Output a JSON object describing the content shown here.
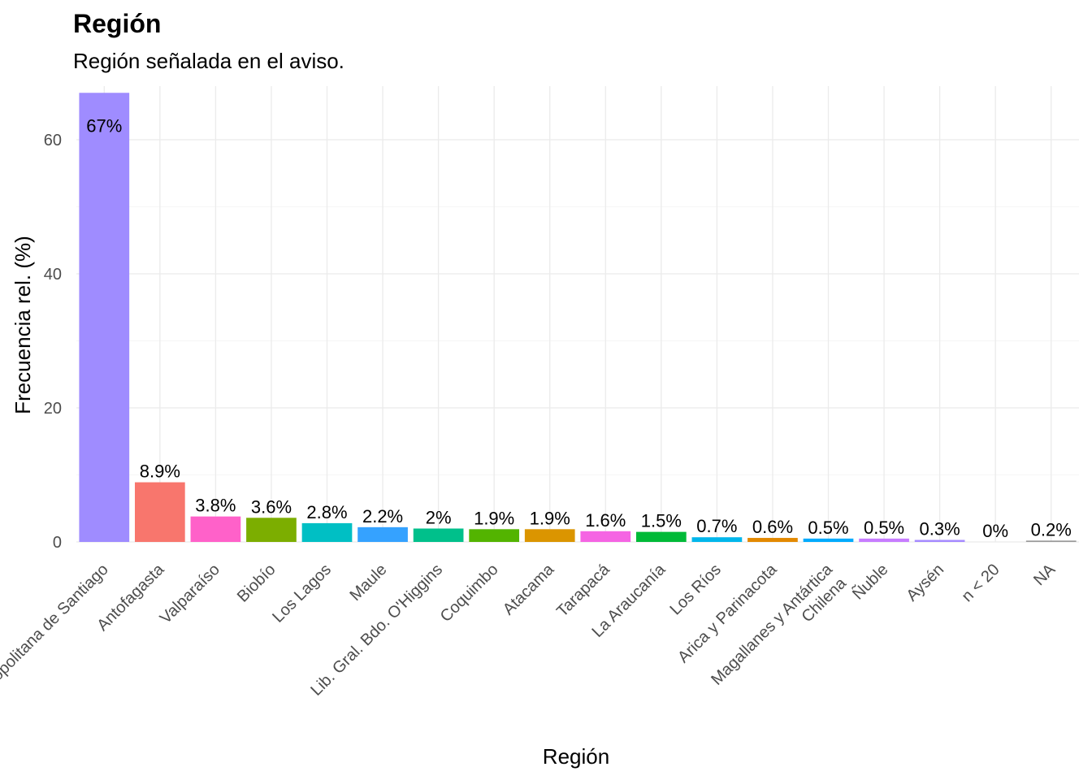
{
  "chart_data": {
    "type": "bar",
    "title": "Región",
    "subtitle": "Región señalada en el aviso.",
    "xlabel": "Región",
    "ylabel": "Frecuencia rel. (%)",
    "ylim": [
      0,
      68
    ],
    "yticks": [
      0,
      20,
      40,
      60
    ],
    "grid": true,
    "legend": "none",
    "categories": [
      "Metropolitana de Santiago",
      "Antofagasta",
      "Valparaíso",
      "Biobío",
      "Los Lagos",
      "Maule",
      "Lib. Gral. Bdo. O'Higgins",
      "Coquimbo",
      "Atacama",
      "Tarapacá",
      "La Araucanía",
      "Los Ríos",
      "Arica y Parinacota",
      "Magallanes y Antártica\nChilena",
      "Ñuble",
      "Aysén",
      "n < 20",
      "NA"
    ],
    "values": [
      67,
      8.9,
      3.8,
      3.6,
      2.8,
      2.2,
      2,
      1.9,
      1.9,
      1.6,
      1.5,
      0.7,
      0.6,
      0.5,
      0.5,
      0.3,
      0,
      0.2
    ],
    "data_labels": [
      "67%",
      "8.9%",
      "3.8%",
      "3.6%",
      "2.8%",
      "2.2%",
      "2%",
      "1.9%",
      "1.9%",
      "1.6%",
      "1.5%",
      "0.7%",
      "0.6%",
      "0.5%",
      "0.5%",
      "0.3%",
      "0%",
      "0.2%"
    ],
    "colors": [
      "#9F8CFF",
      "#F8766D",
      "#FF61C9",
      "#7CAE00",
      "#00BFC4",
      "#35A2FF",
      "#00C08B",
      "#53B400",
      "#DB9500",
      "#F564E3",
      "#00BA38",
      "#00B6EB",
      "#E38900",
      "#00ABFD",
      "#C77CFF",
      "#A58AFF",
      "#FB61D7",
      "#999999"
    ]
  }
}
